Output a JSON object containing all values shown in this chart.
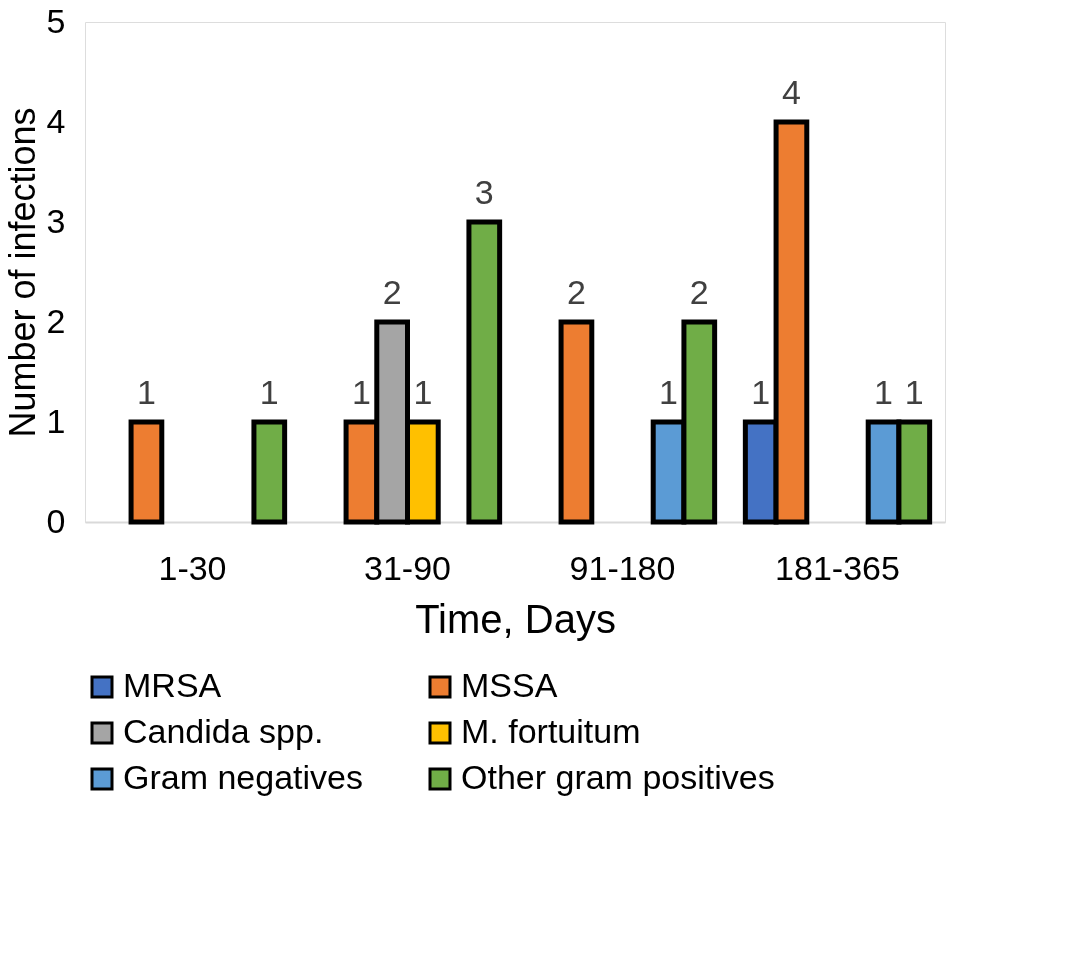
{
  "chart_data": {
    "type": "bar",
    "xlabel": "Time, Days",
    "ylabel": "Number of infections",
    "categories": [
      "1-30",
      "31-90",
      "91-180",
      "181-365"
    ],
    "series": [
      {
        "name": "MRSA",
        "color": "#4472c4",
        "values": [
          null,
          null,
          null,
          1
        ]
      },
      {
        "name": "MSSA",
        "color": "#ed7d31",
        "values": [
          1,
          1,
          2,
          4
        ]
      },
      {
        "name": "Candida spp.",
        "color": "#a5a5a5",
        "values": [
          null,
          2,
          null,
          null
        ]
      },
      {
        "name": "M. fortuitum",
        "color": "#ffc000",
        "values": [
          null,
          1,
          null,
          null
        ]
      },
      {
        "name": "Gram negatives",
        "color": "#5b9bd5",
        "values": [
          null,
          null,
          1,
          1
        ]
      },
      {
        "name": "Other gram positives",
        "color": "#70ad47",
        "values": [
          1,
          3,
          2,
          1
        ]
      }
    ],
    "ylim": [
      0,
      5
    ],
    "yticks": [
      0,
      1,
      2,
      3,
      4,
      5
    ],
    "grid": false,
    "legend": "bottom",
    "data_labels": true
  }
}
